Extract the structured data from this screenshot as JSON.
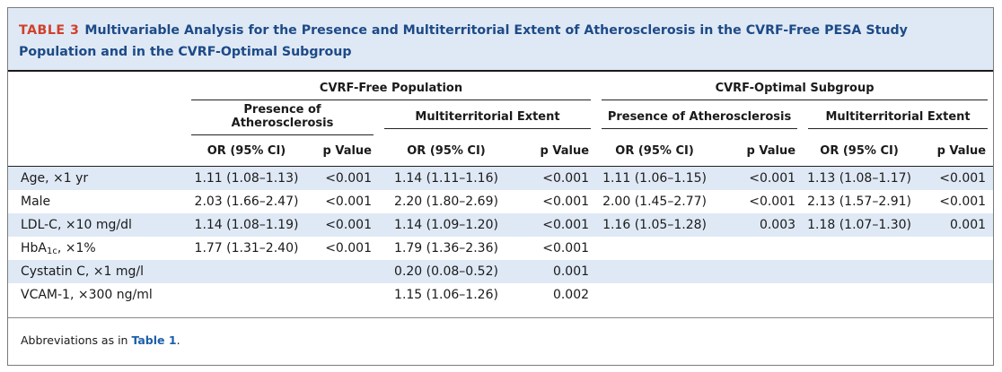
{
  "table": {
    "label": "TABLE 3",
    "title": "Multivariable Analysis for the Presence and Multiterritorial Extent of Atherosclerosis in the CVRF-Free PESA Study Population and in the CVRF-Optimal Subgroup",
    "groups": [
      "CVRF-Free Population",
      "CVRF-Optimal Subgroup"
    ],
    "subgroups": [
      "Presence of Atherosclerosis",
      "Multiterritorial Extent",
      "Presence of Atherosclerosis",
      "Multiterritorial Extent"
    ],
    "col_or": "OR (95% CI)",
    "col_p": "p Value",
    "rows": [
      {
        "label": "Age, ×1 yr",
        "c1": "1.11 (1.08–1.13)",
        "p1": "<0.001",
        "c2": "1.14 (1.11–1.16)",
        "p2": "<0.001",
        "c3": "1.11 (1.06–1.15)",
        "p3": "<0.001",
        "c4": "1.13 (1.08–1.17)",
        "p4": "<0.001"
      },
      {
        "label": "Male",
        "c1": "2.03 (1.66–2.47)",
        "p1": "<0.001",
        "c2": "2.20 (1.80–2.69)",
        "p2": "<0.001",
        "c3": "2.00 (1.45–2.77)",
        "p3": "<0.001",
        "c4": "2.13 (1.57–2.91)",
        "p4": "<0.001"
      },
      {
        "label": "LDL-C, ×10 mg/dl",
        "c1": "1.14 (1.08–1.19)",
        "p1": "<0.001",
        "c2": "1.14 (1.09–1.20)",
        "p2": "<0.001",
        "c3": "1.16 (1.05–1.28)",
        "p3": "0.003",
        "c4": "1.18 (1.07–1.30)",
        "p4": "0.001"
      },
      {
        "label_main": "HbA",
        "label_sub": "1c",
        "label_rest": ", ×1%",
        "c1": "1.77 (1.31–2.40)",
        "p1": "<0.001",
        "c2": "1.79 (1.36–2.36)",
        "p2": "<0.001",
        "c3": "",
        "p3": "",
        "c4": "",
        "p4": ""
      },
      {
        "label": "Cystatin C, ×1 mg/l",
        "c1": "",
        "p1": "",
        "c2": "0.20 (0.08–0.52)",
        "p2": "0.001",
        "c3": "",
        "p3": "",
        "c4": "",
        "p4": ""
      },
      {
        "label": "VCAM-1, ×300 ng/ml",
        "c1": "",
        "p1": "",
        "c2": "1.15 (1.06–1.26)",
        "p2": "0.002",
        "c3": "",
        "p3": "",
        "c4": "",
        "p4": ""
      }
    ],
    "footnote_text": "Abbreviations as in ",
    "footnote_ref": "Table 1",
    "footnote_end": "."
  },
  "colors": {
    "header_bg": "#dfe9f5",
    "title_blue": "#1d4a87",
    "label_red": "#d0402a",
    "link_blue": "#1d5fa8"
  }
}
